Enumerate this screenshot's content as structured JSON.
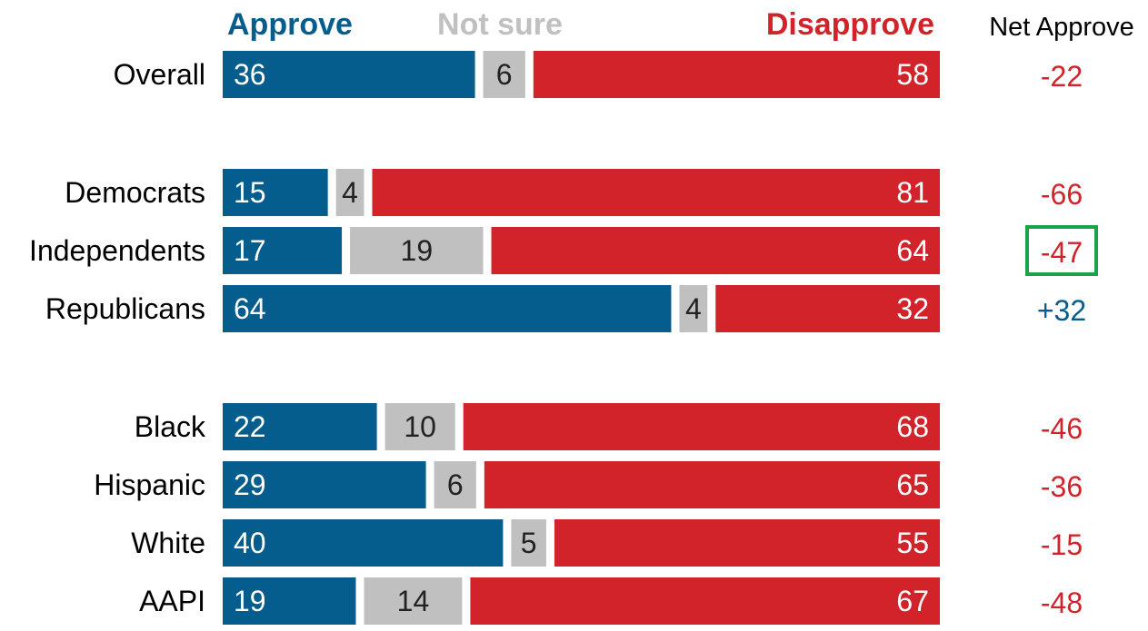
{
  "chart_data": {
    "type": "bar",
    "orientation": "horizontal",
    "stacked": true,
    "series": [
      {
        "name": "Approve",
        "color": "#045d8c"
      },
      {
        "name": "Not sure",
        "color": "#c0c0c0"
      },
      {
        "name": "Disapprove",
        "color": "#d2232a"
      }
    ],
    "net_header": "Net Approve",
    "groups": [
      {
        "rows": [
          {
            "label": "Overall",
            "approve": 36,
            "not_sure": 6,
            "disapprove": 58,
            "net": "-22",
            "net_color": "#d2232a",
            "highlight": false
          }
        ]
      },
      {
        "rows": [
          {
            "label": "Democrats",
            "approve": 15,
            "not_sure": 4,
            "disapprove": 81,
            "net": "-66",
            "net_color": "#d2232a",
            "highlight": false
          },
          {
            "label": "Independents",
            "approve": 17,
            "not_sure": 19,
            "disapprove": 64,
            "net": "-47",
            "net_color": "#d2232a",
            "highlight": true
          },
          {
            "label": "Republicans",
            "approve": 64,
            "not_sure": 4,
            "disapprove": 32,
            "net": "+32",
            "net_color": "#045d8c",
            "highlight": false
          }
        ]
      },
      {
        "rows": [
          {
            "label": "Black",
            "approve": 22,
            "not_sure": 10,
            "disapprove": 68,
            "net": "-46",
            "net_color": "#d2232a",
            "highlight": false
          },
          {
            "label": "Hispanic",
            "approve": 29,
            "not_sure": 6,
            "disapprove": 65,
            "net": "-36",
            "net_color": "#d2232a",
            "highlight": false
          },
          {
            "label": "White",
            "approve": 40,
            "not_sure": 5,
            "disapprove": 55,
            "net": "-15",
            "net_color": "#d2232a",
            "highlight": false
          },
          {
            "label": "AAPI",
            "approve": 19,
            "not_sure": 14,
            "disapprove": 67,
            "net": "-48",
            "net_color": "#d2232a",
            "highlight": false
          }
        ]
      }
    ],
    "highlight_color": "#1aa34a",
    "label_colors": {
      "on_dark": "#ffffff",
      "on_light": "#222222"
    },
    "xlim": [
      0,
      100
    ],
    "legend_position": "top",
    "grid": false
  }
}
